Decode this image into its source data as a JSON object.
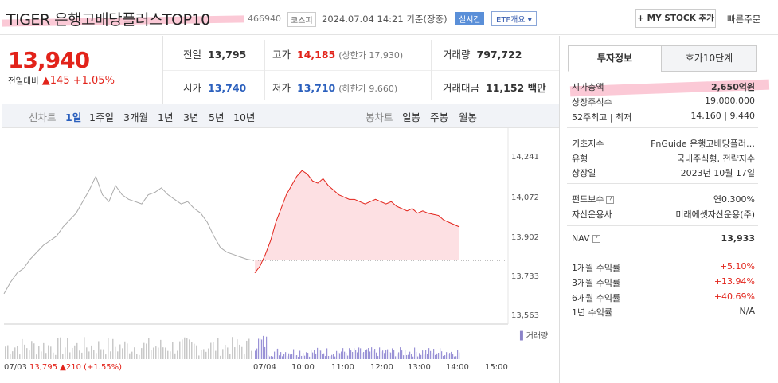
{
  "header": {
    "title": "TIGER 은행고배당플러스TOP10",
    "code": "466940",
    "market": "코스피",
    "datetime": "2024.07.04 14:21 기준(장중)",
    "realtime": "실시간",
    "etf_overview": "ETF개요",
    "my_stock_button": "+ MY STOCK 추가",
    "quick_order": "빠른주문"
  },
  "price": {
    "current": "13,940",
    "change_label": "전일대비",
    "change_value": "▲145",
    "change_pct": "+1.05%"
  },
  "quotes": {
    "prev_label": "전일",
    "prev_value": "13,795",
    "high_label": "고가",
    "high_value": "14,185",
    "upper_limit": "(상한가 17,930)",
    "volume_label": "거래량",
    "volume_value": "797,722",
    "open_label": "시가",
    "open_value": "13,740",
    "low_label": "저가",
    "low_value": "13,710",
    "lower_limit": "(하한가 9,660)",
    "amount_label": "거래대금",
    "amount_value": "11,152 백만"
  },
  "chart_tabs": {
    "line_label": "선차트",
    "periods": [
      "1일",
      "1주일",
      "3개월",
      "1년",
      "3년",
      "5년",
      "10년"
    ],
    "selected": "1일",
    "candle_label": "봉차트",
    "candles": [
      "일봉",
      "주봉",
      "월봉"
    ]
  },
  "right_tabs": {
    "invest_info": "투자정보",
    "order_book": "호가10단계"
  },
  "info": {
    "market_cap_label": "시가총액",
    "market_cap": "2,650억원",
    "shares_label": "상장주식수",
    "shares": "19,000,000",
    "range52_label": "52주최고 | 최저",
    "range52": "14,160 | 9,440",
    "index_label": "기초지수",
    "index": "FnGuide 은행고배당플러…",
    "type_label": "유형",
    "type": "국내주식형, 전략지수",
    "listing_label": "상장일",
    "listing": "2023년 10월 17일",
    "fee_label": "펀드보수",
    "fee": "연0.300%",
    "manager_label": "자산운용사",
    "manager": "미래에셋자산운용(주)",
    "nav_label": "NAV",
    "nav": "13,933",
    "r1m_label": "1개월 수익률",
    "r1m": "+5.10%",
    "r3m_label": "3개월 수익률",
    "r3m": "+13.94%",
    "r6m_label": "6개월 수익률",
    "r6m": "+40.69%",
    "r1y_label": "1년 수익률",
    "r1y": "N/A"
  },
  "chart_data": {
    "type": "line",
    "y_ticks": [
      "14,241",
      "14,072",
      "13,902",
      "13,733",
      "13,563"
    ],
    "x_ticks": [
      "07/04",
      "10:00",
      "11:00",
      "12:00",
      "13:00",
      "14:00",
      "15:00"
    ],
    "prev_day_label": "07/03",
    "volume_label": "거래량",
    "prev_day_summary": "13,795 ▲210 (+1.55%)",
    "ylim": [
      13563,
      14241
    ],
    "reference_line": 13795,
    "prev_day_series": [
      13650,
      13700,
      13740,
      13760,
      13800,
      13830,
      13860,
      13880,
      13900,
      13940,
      13970,
      14000,
      14050,
      14100,
      14160,
      14080,
      14050,
      14120,
      14080,
      14060,
      14050,
      14040,
      14080,
      14090,
      14110,
      14080,
      14060,
      14040,
      14050,
      14020,
      14000,
      13960,
      13900,
      13850,
      13830,
      13820,
      13810,
      13800,
      13795
    ],
    "today_series": [
      13740,
      13770,
      13820,
      13880,
      13960,
      14020,
      14080,
      14120,
      14160,
      14185,
      14170,
      14140,
      14130,
      14150,
      14120,
      14100,
      14080,
      14070,
      14060,
      14060,
      14050,
      14040,
      14050,
      14060,
      14050,
      14040,
      14050,
      14030,
      14020,
      14010,
      14020,
      14000,
      14010,
      14000,
      13995,
      13990,
      13970,
      13960,
      13950,
      13940
    ],
    "colors": {
      "up": "#e2231a",
      "prev": "#aaaaaa",
      "fill": "#fde0e3"
    }
  }
}
